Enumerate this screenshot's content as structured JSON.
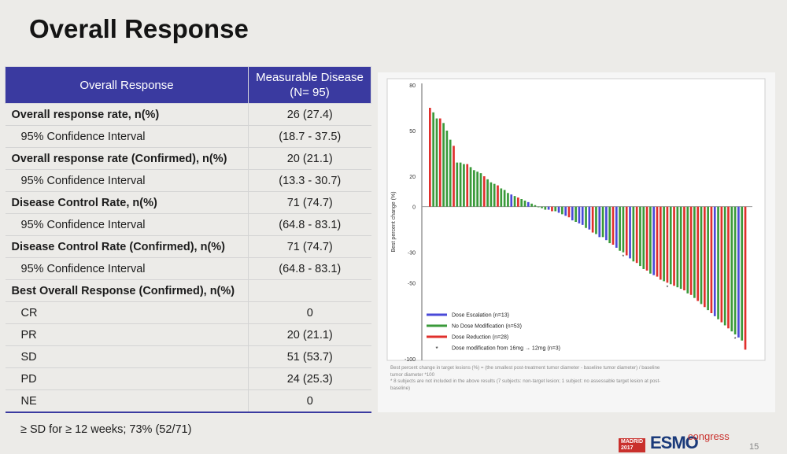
{
  "slide": {
    "title": "Overall Response",
    "footnote": "≥ SD for ≥ 12 weeks; 73% (52/71)",
    "page_number": "15",
    "logo": {
      "madrid": "MADRID",
      "year": "2017",
      "esmo": "ESMO",
      "congress": "congress"
    }
  },
  "table": {
    "header_col1": "Overall Response",
    "header_col2_line1": "Measurable Disease",
    "header_col2_line2": "(N= 95)",
    "rows": [
      {
        "label": "Overall response rate, n(%)",
        "value": "26 (27.4)"
      },
      {
        "label": "95% Confidence Interval",
        "value": "(18.7 - 37.5)"
      },
      {
        "label": "Overall response rate (Confirmed), n(%)",
        "value": "20 (21.1)"
      },
      {
        "label": "95% Confidence Interval",
        "value": "(13.3 - 30.7)"
      },
      {
        "label": "Disease Control Rate, n(%)",
        "value": "71 (74.7)"
      },
      {
        "label": "95% Confidence Interval",
        "value": "(64.8 - 83.1)"
      },
      {
        "label": "Disease Control Rate (Confirmed), n(%)",
        "value": "71 (74.7)"
      },
      {
        "label": "95% Confidence Interval",
        "value": "(64.8 - 83.1)"
      },
      {
        "label": "Best Overall Response (Confirmed), n(%)",
        "value": ""
      },
      {
        "label": "CR",
        "value": "0"
      },
      {
        "label": "PR",
        "value": "20 (21.1)"
      },
      {
        "label": "SD",
        "value": "51 (53.7)"
      },
      {
        "label": "PD",
        "value": "24 (25.3)"
      },
      {
        "label": "NE",
        "value": "0"
      }
    ]
  },
  "chart_data": {
    "type": "bar",
    "ylabel": "Best percent change (%)",
    "ylim": [
      -100,
      80
    ],
    "yticks": [
      "80",
      "50",
      "20",
      "0",
      "-30",
      "-50",
      "-100"
    ],
    "ytick_values": [
      80,
      50,
      20,
      0,
      -30,
      -50,
      -100
    ],
    "grid": false,
    "legend_position": "bottom-left",
    "legend": [
      {
        "label": "Dose Escalation (n=13)",
        "color": "#4a4ad8"
      },
      {
        "label": "No Dose Modification (n=53)",
        "color": "#3a9a3a"
      },
      {
        "label": "Dose Reduction (n=28)",
        "color": "#e0302c"
      },
      {
        "label": "Dose modification from 16mg → 12mg (n=3)",
        "marker": "*"
      }
    ],
    "series_colors": {
      "escalation": "#4a4ad8",
      "none": "#3a9a3a",
      "reduction": "#e0302c"
    },
    "values": [
      65,
      62,
      58,
      58,
      55,
      50,
      44,
      40,
      29,
      29,
      28,
      28,
      26,
      24,
      23,
      22,
      20,
      18,
      16,
      15,
      14,
      12,
      11,
      9,
      8,
      7,
      6,
      5,
      4,
      3,
      2,
      1,
      0,
      -1,
      -2,
      -2,
      -3,
      -3,
      -4,
      -5,
      -6,
      -7,
      -9,
      -10,
      -11,
      -12,
      -14,
      -15,
      -17,
      -18,
      -20,
      -20,
      -22,
      -24,
      -25,
      -27,
      -29,
      -30,
      -32,
      -34,
      -36,
      -37,
      -39,
      -41,
      -42,
      -44,
      -45,
      -46,
      -48,
      -49,
      -50,
      -51,
      -52,
      -53,
      -54,
      -55,
      -57,
      -58,
      -60,
      -62,
      -64,
      -66,
      -68,
      -70,
      -72,
      -74,
      -76,
      -78,
      -80,
      -82,
      -84,
      -86,
      -88,
      -94
    ],
    "colors": [
      "reduction",
      "none",
      "none",
      "reduction",
      "none",
      "none",
      "none",
      "reduction",
      "none",
      "none",
      "none",
      "reduction",
      "none",
      "none",
      "none",
      "none",
      "reduction",
      "none",
      "none",
      "none",
      "reduction",
      "none",
      "none",
      "none",
      "escalation",
      "none",
      "reduction",
      "none",
      "none",
      "escalation",
      "none",
      "none",
      "none",
      "none",
      "none",
      "escalation",
      "reduction",
      "none",
      "escalation",
      "none",
      "escalation",
      "reduction",
      "escalation",
      "none",
      "escalation",
      "escalation",
      "none",
      "escalation",
      "reduction",
      "none",
      "escalation",
      "none",
      "escalation",
      "none",
      "reduction",
      "escalation",
      "none",
      "none",
      "reduction",
      "escalation",
      "none",
      "reduction",
      "none",
      "none",
      "reduction",
      "none",
      "escalation",
      "reduction",
      "reduction",
      "none",
      "reduction",
      "none",
      "reduction",
      "none",
      "none",
      "reduction",
      "none",
      "reduction",
      "none",
      "reduction",
      "none",
      "reduction",
      "none",
      "reduction",
      "escalation",
      "none",
      "reduction",
      "none",
      "reduction",
      "none",
      "none",
      "escalation",
      "none",
      "reduction"
    ],
    "asterisks": [
      57,
      70,
      90
    ],
    "caption_lines": [
      "Best percent change in target lesions (%) = (the smallest post-treatment tumor diameter - baseline tumor diameter) / baseline",
      "tumor diameter *100",
      "* 8 subjects are not included in the above results (7 subjects: non-target lesion; 1 subject: no assessable target lesion at post-",
      "baseline)"
    ]
  }
}
